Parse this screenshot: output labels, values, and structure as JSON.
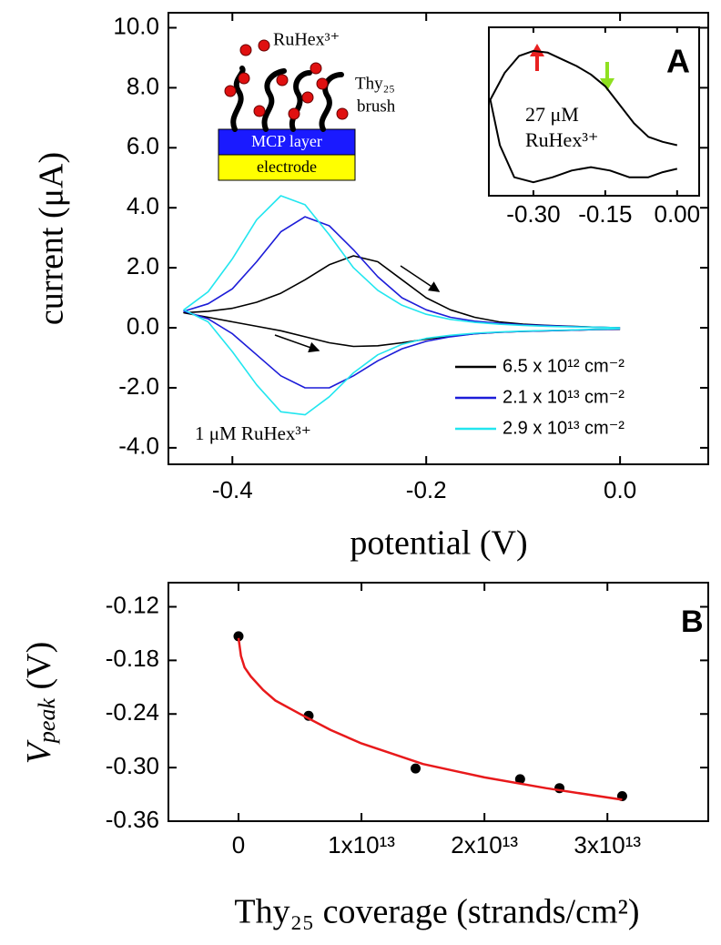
{
  "chart_data": [
    {
      "type": "line",
      "panel": "A",
      "x_label": "potential (V)",
      "y_label": "current (μA)",
      "x": [
        0,
        -0.025,
        -0.05,
        -0.075,
        -0.1,
        -0.125,
        -0.15,
        -0.175,
        -0.2,
        -0.225,
        -0.25,
        -0.275,
        -0.3,
        -0.325,
        -0.35,
        -0.375,
        -0.4,
        -0.425,
        -0.45,
        -0.425,
        -0.4,
        -0.375,
        -0.35,
        -0.325,
        -0.3,
        -0.275,
        -0.25,
        -0.225,
        -0.2,
        -0.175,
        -0.15,
        -0.125,
        -0.1,
        -0.075,
        -0.05,
        -0.025,
        0
      ],
      "series": [
        {
          "name": "6.5 x 10¹² cm⁻²",
          "color": "#000000",
          "values": [
            0,
            0.02,
            0.05,
            0.08,
            0.12,
            0.2,
            0.35,
            0.6,
            1.0,
            1.6,
            2.2,
            2.4,
            2.1,
            1.6,
            1.15,
            0.85,
            0.65,
            0.55,
            0.5,
            0.35,
            0.2,
            0.05,
            -0.1,
            -0.3,
            -0.5,
            -0.62,
            -0.6,
            -0.5,
            -0.38,
            -0.28,
            -0.2,
            -0.15,
            -0.12,
            -0.1,
            -0.08,
            -0.06,
            -0.05
          ]
        },
        {
          "name": "2.1 x 10¹³ cm⁻²",
          "color": "#1c1cd8",
          "values": [
            0,
            0.02,
            0.04,
            0.07,
            0.1,
            0.15,
            0.22,
            0.35,
            0.6,
            1.0,
            1.7,
            2.6,
            3.4,
            3.7,
            3.2,
            2.2,
            1.3,
            0.8,
            0.55,
            0.3,
            -0.2,
            -0.9,
            -1.6,
            -2.0,
            -2.0,
            -1.6,
            -1.1,
            -0.7,
            -0.45,
            -0.3,
            -0.2,
            -0.15,
            -0.12,
            -0.1,
            -0.08,
            -0.06,
            -0.04
          ]
        },
        {
          "name": "2.9 x 10¹³ cm⁻²",
          "color": "#22e6ef",
          "values": [
            0,
            0.02,
            0.03,
            0.05,
            0.08,
            0.12,
            0.18,
            0.28,
            0.45,
            0.75,
            1.25,
            2.0,
            3.1,
            4.1,
            4.4,
            3.6,
            2.3,
            1.2,
            0.6,
            0.2,
            -0.8,
            -1.9,
            -2.8,
            -2.9,
            -2.3,
            -1.5,
            -0.9,
            -0.55,
            -0.35,
            -0.25,
            -0.18,
            -0.14,
            -0.11,
            -0.09,
            -0.07,
            -0.05,
            -0.03
          ]
        }
      ],
      "xlim": [
        -0.466,
        0.091
      ],
      "xticks": [
        {
          "value": -0.4,
          "label": "-0.4"
        },
        {
          "value": -0.2,
          "label": "-0.2"
        },
        {
          "value": 0,
          "label": "0.0"
        }
      ],
      "ylim": [
        -4.55,
        10.5
      ],
      "yticks": [
        {
          "value": -4,
          "label": "-4.0"
        },
        {
          "value": -2,
          "label": "-2.0"
        },
        {
          "value": 0,
          "label": "0.0"
        },
        {
          "value": 2,
          "label": "2.0"
        },
        {
          "value": 4,
          "label": "4.0"
        },
        {
          "value": 6,
          "label": "6.0"
        },
        {
          "value": 8,
          "label": "8.0"
        },
        {
          "value": 10,
          "label": "10.0"
        }
      ],
      "legend": "lower right",
      "annotations": [
        "1 μM RuHex³⁺"
      ],
      "schematic": {
        "ion": "RuHex³⁺",
        "brush": [
          "Thy₂₅",
          "brush"
        ],
        "layer": "MCP layer",
        "electrode": "electrode"
      }
    },
    {
      "type": "line",
      "x": [
        0,
        -0.03,
        -0.06,
        -0.09,
        -0.12,
        -0.15,
        -0.18,
        -0.21,
        -0.24,
        -0.27,
        -0.3,
        -0.33,
        -0.36,
        -0.39,
        -0.37,
        -0.34,
        -0.3,
        -0.26,
        -0.22,
        -0.18,
        -0.14,
        -0.1,
        -0.06,
        -0.03,
        0
      ],
      "series": [
        {
          "color": "#000000",
          "values": [
            3.0,
            3.2,
            3.5,
            4.3,
            5.4,
            6.5,
            7.2,
            7.7,
            8.1,
            8.5,
            8.6,
            8.3,
            7.3,
            5.7,
            3.0,
            1.1,
            0.8,
            1.1,
            1.5,
            1.7,
            1.5,
            1.1,
            1.1,
            1.4,
            1.6
          ]
        }
      ],
      "xlim": [
        -0.393,
        0.046
      ],
      "xticks": [
        {
          "value": -0.3,
          "label": "-0.30"
        },
        {
          "value": -0.15,
          "label": "-0.15"
        },
        {
          "value": 0,
          "label": "0.00"
        }
      ],
      "ylim": [
        0,
        10
      ],
      "annotations": [
        "27 μM",
        "RuHex³⁺"
      ]
    },
    {
      "type": "scatter",
      "panel": "B",
      "x_label": "Thy₂₅ coverage (strands/cm²)",
      "y_label": {
        "main": "V",
        "sub": "peak",
        "unit": " (V)"
      },
      "x": [
        0,
        5700000000000,
        14400000000000,
        22900000000000,
        26100000000000,
        31200000000000
      ],
      "series": [
        {
          "color": "#000000",
          "values": [
            -0.153,
            -0.242,
            -0.301,
            -0.313,
            -0.323,
            -0.332
          ]
        },
        {
          "type": "line",
          "color": "#e8191b",
          "x": [
            0,
            200000000000,
            500000000000,
            1000000000000,
            2000000000000,
            3000000000000,
            5000000000000,
            7500000000000,
            10000000000000,
            15000000000000,
            20000000000000,
            25000000000000,
            31200000000000
          ],
          "values": [
            -0.155,
            -0.175,
            -0.188,
            -0.198,
            -0.213,
            -0.225,
            -0.24,
            -0.258,
            -0.273,
            -0.296,
            -0.311,
            -0.323,
            -0.336
          ]
        }
      ],
      "xlim": [
        -5700000000000,
        38200000000000
      ],
      "xticks": [
        0,
        {
          "value": 10000000000000,
          "label": "1x10¹³"
        },
        {
          "value": 20000000000000,
          "label": "2x10¹³"
        },
        {
          "value": 30000000000000,
          "label": "3x10¹³"
        }
      ],
      "ylim": [
        -0.36,
        -0.093
      ],
      "yticks": [
        -0.36,
        {
          "value": -0.3,
          "label": "-0.30"
        },
        -0.24,
        -0.18,
        -0.12
      ]
    }
  ]
}
